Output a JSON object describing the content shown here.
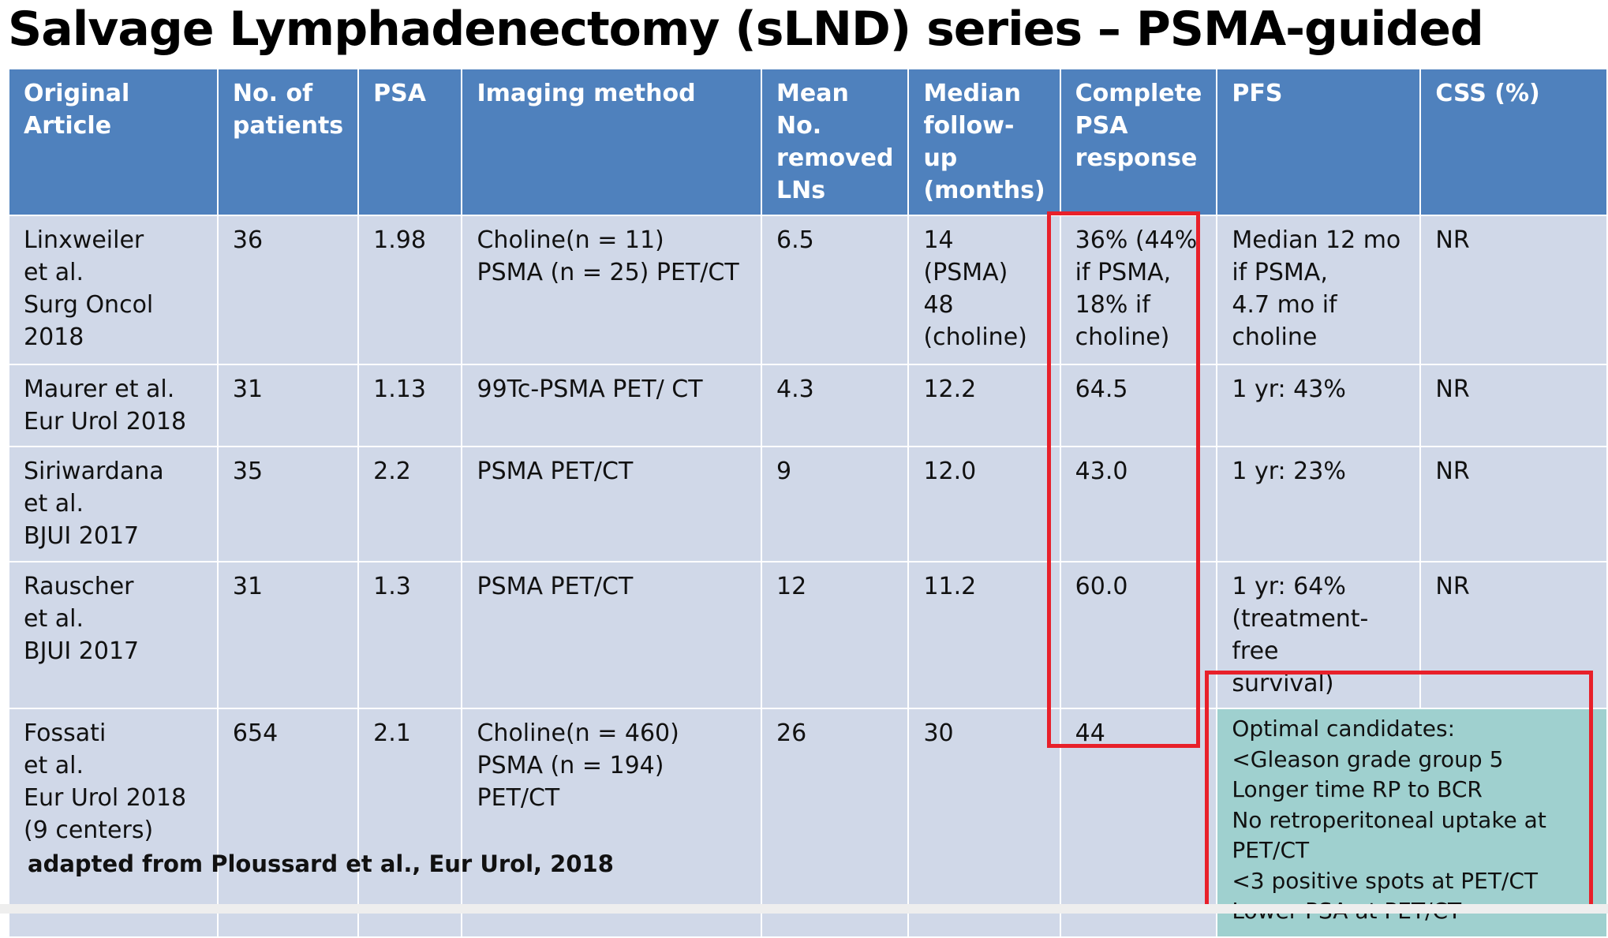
{
  "header": {
    "title": "Salvage Lymphadenectomy (sLND) series – PSMA-guided"
  },
  "table": {
    "columns": [
      "Original Article",
      "No. of\npatients",
      "PSA",
      "Imaging method",
      "Mean\nNo.\nremoved\nLNs",
      "Median\nfollow-up\n(months)",
      "Complete\nPSA\nresponse",
      "PFS",
      "CSS (%)"
    ],
    "rows": [
      [
        "Linxweiler\net al.\nSurg Oncol 2018",
        "36",
        "1.98",
        "Choline(n = 11)\nPSMA (n = 25) PET/CT",
        "6.5",
        "14 (PSMA)\n48\n(choline)",
        "36% (44%\nif PSMA,\n18% if\ncholine)",
        "Median 12 mo\nif PSMA,\n4.7 mo if\ncholine",
        "NR"
      ],
      [
        "Maurer et al.\nEur Urol 2018",
        "31",
        "1.13",
        "99Tc-PSMA PET/ CT",
        "4.3",
        "12.2",
        "64.5",
        "1 yr: 43%",
        "NR"
      ],
      [
        "Siriwardana\net al.\nBJUI 2017",
        "35",
        "2.2",
        "PSMA PET/CT",
        "9",
        "12.0",
        "43.0",
        "1 yr: 23%",
        "NR"
      ],
      [
        "Rauscher\net al.\nBJUI 2017",
        "31",
        "1.3",
        "PSMA PET/CT",
        "12",
        "11.2",
        "60.0",
        "1 yr: 64%\n(treatment-free\nsurvival)",
        "NR"
      ],
      [
        "Fossati\net al.\nEur Urol 2018\n(9 centers)",
        "654",
        "2.1",
        "Choline(n = 460)\nPSMA (n = 194) PET/CT",
        "26",
        "30",
        "44",
        "Optimal candidates:\n<Gleason grade group 5\nLonger time RP to BCR\nNo retroperitoneal uptake at\nPET/CT\n<3 positive spots at PET/CT\nLower PSA at PET/CT"
      ]
    ]
  },
  "footnote": "adapted from Ploussard et al., Eur Urol, 2018"
}
